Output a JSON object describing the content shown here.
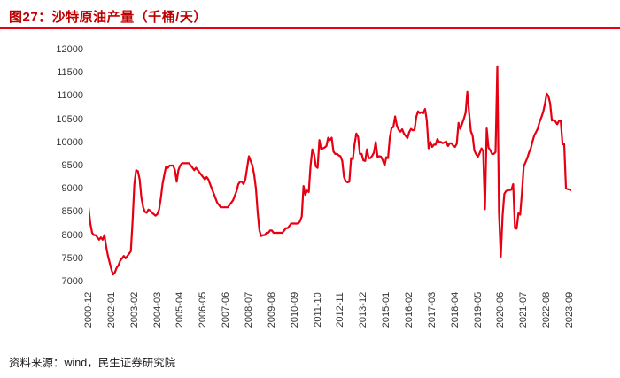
{
  "header": {
    "title": "图27：沙特原油产量（千桶/天）"
  },
  "footer": {
    "source": "资料来源：wind，民生证券研究院"
  },
  "colors": {
    "title": "#c00000",
    "rule": "#e60012",
    "line": "#e60012",
    "axis_text": "#333333",
    "background": "#ffffff"
  },
  "chart_data": {
    "type": "line",
    "title": "沙特原油产量（千桶/天）",
    "xlabel": "",
    "ylabel": "",
    "grid": false,
    "legend": "none",
    "ylim": [
      7000,
      12000
    ],
    "yticks": [
      12000,
      11500,
      11000,
      10500,
      10000,
      9500,
      9000,
      8500,
      8000,
      7500,
      7000
    ],
    "x_start_month": "2000-12",
    "frequency": "monthly",
    "xticks": [
      "2000-12",
      "2002-01",
      "2003-02",
      "2004-03",
      "2005-04",
      "2006-05",
      "2007-06",
      "2008-07",
      "2009-08",
      "2010-09",
      "2011-10",
      "2012-11",
      "2013-12",
      "2015-01",
      "2016-02",
      "2017-03",
      "2018-04",
      "2019-05",
      "2020-06",
      "2021-07",
      "2022-08",
      "2023-09"
    ],
    "xtick_interval_months": 13,
    "series": [
      {
        "name": "沙特原油产量",
        "unit": "千桶/天",
        "color": "#e60012",
        "values": [
          8600,
          8250,
          8050,
          8000,
          8000,
          7950,
          7900,
          7950,
          7900,
          8000,
          7750,
          7550,
          7400,
          7250,
          7150,
          7200,
          7300,
          7350,
          7450,
          7500,
          7550,
          7500,
          7550,
          7600,
          7650,
          8300,
          9100,
          9400,
          9380,
          9200,
          8800,
          8600,
          8500,
          8480,
          8550,
          8530,
          8480,
          8450,
          8420,
          8450,
          8550,
          8800,
          9100,
          9300,
          9480,
          9450,
          9500,
          9500,
          9500,
          9400,
          9150,
          9400,
          9500,
          9550,
          9550,
          9550,
          9550,
          9550,
          9500,
          9450,
          9400,
          9450,
          9400,
          9350,
          9300,
          9250,
          9200,
          9250,
          9200,
          9100,
          9000,
          8900,
          8800,
          8700,
          8650,
          8600,
          8600,
          8600,
          8600,
          8600,
          8650,
          8700,
          8750,
          8850,
          8950,
          9100,
          9150,
          9150,
          9100,
          9200,
          9450,
          9700,
          9600,
          9500,
          9300,
          9000,
          8500,
          8100,
          7980,
          8000,
          8000,
          8050,
          8050,
          8100,
          8100,
          8050,
          8050,
          8050,
          8050,
          8050,
          8050,
          8100,
          8150,
          8150,
          8200,
          8250,
          8250,
          8250,
          8250,
          8250,
          8300,
          8400,
          9060,
          8870,
          8960,
          8930,
          9490,
          9850,
          9750,
          9480,
          9450,
          10050,
          9850,
          9870,
          9890,
          9920,
          10100,
          10050,
          10100,
          9800,
          9750,
          9750,
          9720,
          9700,
          9600,
          9250,
          9160,
          9140,
          9150,
          9660,
          9640,
          9960,
          10190,
          10120,
          9750,
          9750,
          9610,
          9600,
          9850,
          9660,
          9660,
          9710,
          9780,
          10010,
          9690,
          9700,
          9690,
          9610,
          9500,
          9680,
          9660,
          10100,
          10310,
          10330,
          10560,
          10360,
          10270,
          10230,
          10280,
          10190,
          10140,
          10090,
          10220,
          10290,
          10260,
          10270,
          10550,
          10670,
          10630,
          10650,
          10630,
          10720,
          10470,
          9870,
          10010,
          9900,
          9950,
          9950,
          10070,
          10010,
          10010,
          9980,
          10000,
          10020,
          9920,
          9980,
          9980,
          9930,
          9900,
          9970,
          10420,
          10290,
          10400,
          10510,
          10640,
          11090,
          10640,
          10240,
          10140,
          9820,
          9740,
          9690,
          9770,
          9870,
          9810,
          8560,
          10300,
          9890,
          9830,
          9750,
          9750,
          9790,
          11640,
          8490,
          7530,
          8410,
          8890,
          8950,
          8970,
          8970,
          8980,
          9100,
          8150,
          8140,
          8470,
          8440,
          8920,
          9480,
          9570,
          9660,
          9780,
          9870,
          10020,
          10150,
          10220,
          10300,
          10440,
          10540,
          10650,
          10820,
          11050,
          11000,
          10840,
          10470,
          10480,
          10450,
          10390,
          10460,
          10460,
          9960,
          9960,
          9010,
          8990,
          8980,
          8970
        ]
      }
    ]
  }
}
